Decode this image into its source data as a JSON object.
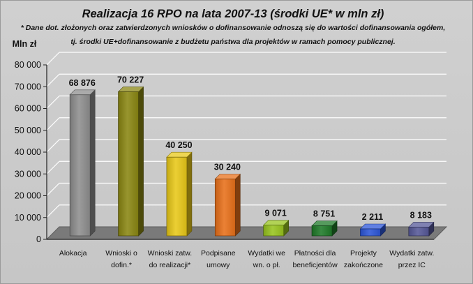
{
  "chart_data": {
    "type": "bar",
    "title": "Realizacja 16 RPO na lata 2007-13 (środki UE* w mln zł)",
    "subtitle_lines": [
      "* Dane dot. złożonych oraz zatwierdzonych wniosków o dofinansowanie odnoszą się do wartości dofinansowania ogółem,",
      "tj. środki UE+dofinansowanie z budżetu państwa dla projektów w ramach pomocy publicznej."
    ],
    "ylabel": "Mln zł",
    "ylim": [
      0,
      80000
    ],
    "yticks": [
      0,
      10000,
      20000,
      30000,
      40000,
      50000,
      60000,
      70000,
      80000
    ],
    "ytick_labels": [
      "0",
      "10 000",
      "20 000",
      "30 000",
      "40 000",
      "50 000",
      "60 000",
      "70 000",
      "80 000"
    ],
    "grid": true,
    "categories": [
      [
        "Alokacja"
      ],
      [
        "Wnioski o",
        "dofin.*"
      ],
      [
        "Wnioski zatw.",
        "do realizacji*"
      ],
      [
        "Podpisane",
        "umowy"
      ],
      [
        "Wydatki we",
        "wn. o pł."
      ],
      [
        "Płatności dla",
        "beneficjentów"
      ],
      [
        "Projekty",
        "zakończone"
      ],
      [
        "Wydatki zatw.",
        "przez IC"
      ]
    ],
    "values": [
      68876,
      70227,
      40250,
      30240,
      9071,
      8751,
      2211,
      8183
    ],
    "value_labels": [
      "68 876",
      "70 227",
      "40 250",
      "30 240",
      "9 071",
      "8 751",
      "2 211",
      "8 183"
    ],
    "colors": [
      "#8e8e8e",
      "#8a8612",
      "#e8c818",
      "#e8701a",
      "#98c41e",
      "#1e7a28",
      "#2c56d8",
      "#565898"
    ]
  }
}
